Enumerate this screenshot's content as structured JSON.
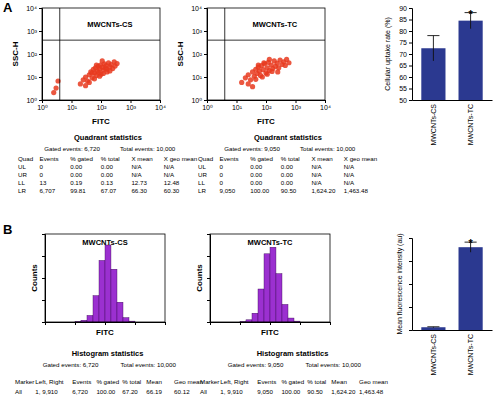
{
  "panel_labels": [
    "A",
    "B"
  ],
  "chart_data": [
    {
      "type": "scatter",
      "title": "MWCNTs-CS",
      "x_label": "FITC",
      "y_label": "SSC-H",
      "log": true,
      "xlim": [
        1,
        10000
      ],
      "ylim": [
        1,
        10000
      ],
      "xticks": [
        {
          "value": 1,
          "label": "10⁰"
        },
        {
          "value": 10,
          "label": "10¹"
        },
        {
          "value": 100,
          "label": "10²"
        },
        {
          "value": 1000,
          "label": "10³"
        },
        {
          "value": 10000,
          "label": "10⁴"
        }
      ],
      "yticks": [
        {
          "value": 1,
          "label": "10⁰"
        },
        {
          "value": 10,
          "label": "10¹"
        },
        {
          "value": 100,
          "label": "10²"
        },
        {
          "value": 1000,
          "label": "10³"
        },
        {
          "value": 10000,
          "label": "10⁴"
        }
      ],
      "gates": {
        "x": 4,
        "y": 400
      },
      "color": "#e8391e",
      "x": [
        20,
        25,
        30,
        35,
        40,
        45,
        50,
        55,
        60,
        65,
        70,
        75,
        80,
        85,
        90,
        95,
        100,
        110,
        120,
        130,
        140,
        150,
        160,
        180,
        200,
        220,
        250,
        280,
        300,
        350,
        40,
        60,
        90,
        120,
        160,
        70,
        50,
        110,
        200,
        30,
        3,
        2.5,
        3.5
      ],
      "y": [
        5,
        7.5,
        10,
        6.7,
        12.5,
        16.7,
        9.2,
        21.7,
        15,
        25,
        11.7,
        18.3,
        29.2,
        15.8,
        22.5,
        33.3,
        13.3,
        26.7,
        20,
        37.5,
        24.2,
        31.7,
        16.7,
        41.7,
        27.5,
        35,
        23.3,
        45.8,
        30,
        38.3,
        5.8,
        8.3,
        10.8,
        14.2,
        21.7,
        33.3,
        15,
        50,
        18.3,
        4.2,
        3.3,
        2.1,
        6.7
      ]
    },
    {
      "type": "scatter",
      "title": "MWCNTs-TC",
      "x_label": "FITC",
      "y_label": "SSC-H",
      "log": true,
      "xlim": [
        1,
        10000
      ],
      "ylim": [
        1,
        10000
      ],
      "xticks": [
        {
          "value": 1,
          "label": "10⁰"
        },
        {
          "value": 10,
          "label": "10¹"
        },
        {
          "value": 100,
          "label": "10²"
        },
        {
          "value": 1000,
          "label": "10³"
        },
        {
          "value": 10000,
          "label": "10⁴"
        }
      ],
      "yticks": [
        {
          "value": 1,
          "label": "10⁰"
        },
        {
          "value": 10,
          "label": "10¹"
        },
        {
          "value": 100,
          "label": "10²"
        },
        {
          "value": 1000,
          "label": "10³"
        },
        {
          "value": 10000,
          "label": "10⁴"
        }
      ],
      "gates": {
        "x": 4,
        "y": 400
      },
      "color": "#e8391e",
      "x": [
        15,
        20,
        25,
        30,
        35,
        40,
        45,
        50,
        55,
        60,
        65,
        70,
        80,
        90,
        100,
        110,
        120,
        130,
        150,
        170,
        190,
        210,
        240,
        270,
        300,
        350,
        400,
        450,
        500,
        600,
        25,
        45,
        75,
        110,
        160,
        85,
        55,
        130,
        250,
        35
      ],
      "y": [
        5.8,
        9.2,
        12.5,
        7.5,
        16.7,
        10.8,
        21.7,
        14.2,
        26.7,
        18.3,
        11.7,
        31.7,
        20.8,
        37.5,
        15,
        25,
        43.3,
        19.2,
        33.3,
        23.3,
        50,
        29.2,
        40,
        25,
        54.2,
        35,
        45.8,
        31.7,
        58.3,
        41.7,
        5,
        7.9,
        10,
        13.3,
        17.5,
        41.7,
        33.3,
        58.3,
        16.7,
        3.8
      ]
    },
    {
      "type": "bar",
      "y_label": "Cellular uptake rate (%)",
      "categories": [
        "MWCNTs-CS",
        "MWCNTs-TC"
      ],
      "values": [
        72.5,
        84.5
      ],
      "errors": [
        5.5,
        3.5
      ],
      "ylim": [
        50,
        90
      ],
      "yticks": [
        50,
        55,
        60,
        65,
        70,
        75,
        80,
        85,
        90
      ],
      "color": "#2b3990",
      "annotations": [
        {
          "text": "*",
          "category": "MWCNTs-TC"
        }
      ]
    },
    {
      "type": "histogram",
      "title": "MWCNTs-CS",
      "x_label": "FITC",
      "y_label": "Counts",
      "log": "x",
      "tick_labels": false,
      "bins": [
        1,
        1.58,
        2.51,
        3.98,
        6.31,
        10,
        15.8,
        25.1,
        39.8,
        63.1,
        100,
        158,
        251,
        398,
        631,
        1000,
        1585,
        2512,
        3981,
        6310,
        10000
      ],
      "counts": [
        0,
        0,
        0,
        0,
        0,
        1,
        4,
        15,
        60,
        140,
        175,
        120,
        45,
        10,
        2,
        0,
        0,
        0,
        0,
        0
      ],
      "xlim": [
        1,
        10000
      ],
      "ylim": [
        0,
        200
      ],
      "xticks": [
        1,
        10,
        100,
        1000,
        10000
      ],
      "yticks": [
        0,
        50,
        100,
        150,
        200
      ],
      "color": "#9b30d0"
    },
    {
      "type": "histogram",
      "title": "MWCNTs-TC",
      "x_label": "FITC",
      "y_label": "Counts",
      "log": "x",
      "tick_labels": false,
      "bins": [
        1,
        1.58,
        2.51,
        3.98,
        6.31,
        10,
        15.8,
        25.1,
        39.8,
        63.1,
        100,
        158,
        251,
        398,
        631,
        1000,
        1585,
        2512,
        3981,
        6310,
        10000
      ],
      "counts": [
        0,
        0,
        0,
        0,
        0,
        1,
        5,
        20,
        75,
        155,
        170,
        110,
        40,
        9,
        2,
        0,
        0,
        0,
        0,
        0
      ],
      "xlim": [
        1,
        10000
      ],
      "ylim": [
        0,
        200
      ],
      "xticks": [
        1,
        10,
        100,
        1000,
        10000
      ],
      "yticks": [
        0,
        50,
        100,
        150,
        200
      ],
      "color": "#9b30d0"
    },
    {
      "type": "bar",
      "y_label": "Mean fluorescence intensity (au)",
      "categories": [
        "MWCNTs-CS",
        "MWCNTs-TC"
      ],
      "values": [
        60,
        1800
      ],
      "errors": [
        10,
        110
      ],
      "ylim": [
        0,
        2000
      ],
      "yticks": [
        0,
        500,
        1000,
        1500,
        2000
      ],
      "tick_labels": "x",
      "color": "#2b3990",
      "annotations": [
        {
          "text": "*",
          "category": "MWCNTs-TC"
        }
      ]
    }
  ],
  "tables": [
    {
      "title": "Quadrant statistics",
      "gated": "Gated events: 6,720",
      "total": "Total events: 10,000",
      "header": [
        "Quad",
        "Events",
        "% gated",
        "% total",
        "X mean",
        "X geo mean"
      ],
      "rows": [
        [
          "UL",
          "0",
          "0.00",
          "0.00",
          "N/A",
          "N/A"
        ],
        [
          "UR",
          "0",
          "0.00",
          "0.00",
          "N/A",
          "N/A"
        ],
        [
          "LL",
          "13",
          "0.19",
          "0.13",
          "12.73",
          "12.48"
        ],
        [
          "LR",
          "6,707",
          "99.81",
          "67.07",
          "66.30",
          "60.30"
        ]
      ]
    },
    {
      "title": "Quadrant statistics",
      "gated": "Gated events: 9,050",
      "total": "Total events: 10,000",
      "header": [
        "Quad",
        "Events",
        "% gated",
        "% total",
        "X mean",
        "X geo mean"
      ],
      "rows": [
        [
          "UL",
          "0",
          "0.00",
          "0.00",
          "N/A",
          "N/A"
        ],
        [
          "UR",
          "0",
          "0.00",
          "0.00",
          "N/A",
          "N/A"
        ],
        [
          "LL",
          "0",
          "0.00",
          "0.00",
          "N/A",
          "N/A"
        ],
        [
          "LR",
          "9,050",
          "100.00",
          "90.50",
          "1,624.20",
          "1,463.48"
        ]
      ]
    },
    {
      "title": "Histogram statistics",
      "gated": "Gated events: 6,720",
      "total": "Total events: 10,000",
      "header": [
        "Marker",
        "Left, Right",
        "Events",
        "% gated",
        "% total",
        "Mean",
        "Geo mean"
      ],
      "rows": [
        [
          "All",
          "1, 9,910",
          "6,720",
          "100.00",
          "67.20",
          "66.19",
          "60.12"
        ]
      ]
    },
    {
      "title": "Histogram statistics",
      "gated": "Gated events: 9,050",
      "total": "Total events: 10,000",
      "header": [
        "Marker",
        "Left, Right",
        "Events",
        "% gated",
        "% total",
        "Mean",
        "Geo mean"
      ],
      "rows": [
        [
          "All",
          "1, 9,910",
          "9,050",
          "100.00",
          "90.50",
          "1,624.20",
          "1,463.48"
        ]
      ]
    }
  ]
}
